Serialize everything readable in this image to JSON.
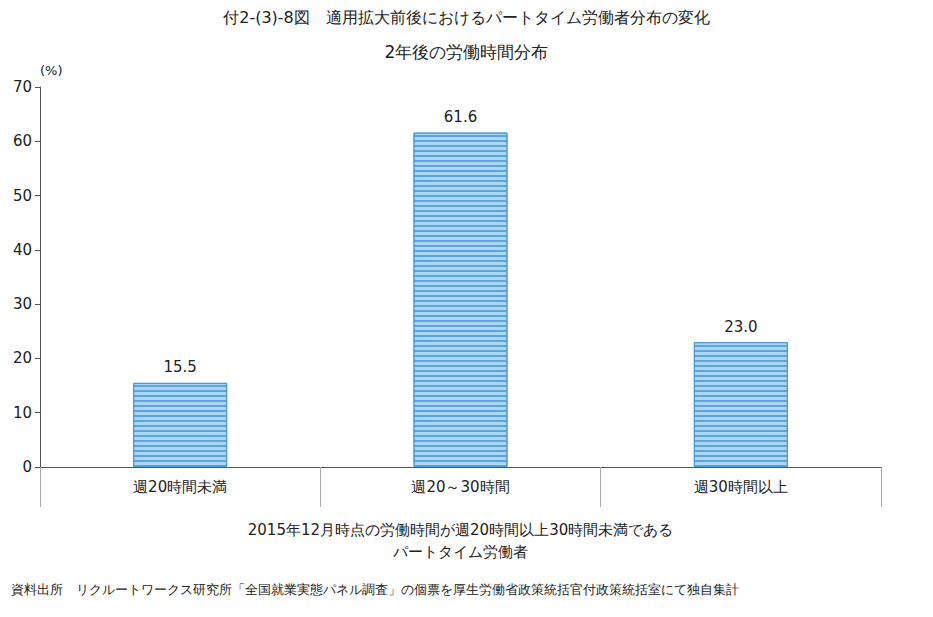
{
  "chart_data": {
    "type": "bar",
    "title": "付2-(3)-8図　適用拡大前後におけるパートタイム労働者分布の変化",
    "subtitle": "2年後の労働時間分布",
    "y_label": "(%)",
    "x_label": "2015年12月時点の労働時間が週20時間以上30時間未満である\nパートタイム労働者",
    "annotations": [
      "資料出所　リクルートワークス研究所「全国就業実態パネル調査」の個票を厚生労働省政策統括官付政策統括室にて独自集計"
    ],
    "categories": [
      "週20時間未満",
      "週20～30時間",
      "週30時間以上"
    ],
    "values": [
      15.5,
      61.6,
      23.0
    ],
    "value_labels": [
      "15.5",
      "61.6",
      "23.0"
    ],
    "color": "#a8d8f5",
    "ylim": [
      0,
      70
    ],
    "yticks": [
      0,
      10,
      20,
      30,
      40,
      50,
      60,
      70
    ],
    "grid": false,
    "data_labels": true
  }
}
